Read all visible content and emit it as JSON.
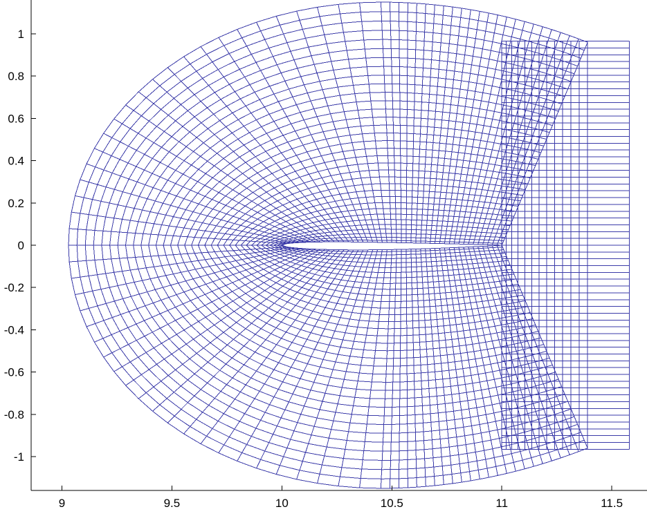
{
  "chart_data": {
    "type": "line",
    "title": "",
    "xlabel": "",
    "ylabel": "",
    "xlim": [
      8.86,
      11.66
    ],
    "ylim": [
      -1.16,
      1.16
    ],
    "grid": false,
    "legend": "none",
    "description_of_data": "structured O-type computational mesh around an airfoil (chord from x=10 to x=11) with rectangular wake block extending to x=11.58",
    "mesh": {
      "airfoil_leading_edge": [
        10.0,
        0.0
      ],
      "airfoil_trailing_edge": [
        11.0,
        0.0
      ],
      "airfoil_upper_max": [
        10.3,
        0.07
      ],
      "airfoil_lower_min": [
        10.35,
        -0.075
      ],
      "outer_boundary_points": [
        [
          9.03,
          0.0
        ],
        [
          9.2,
          0.55
        ],
        [
          9.44,
          0.8
        ],
        [
          9.6,
          0.92
        ],
        [
          9.9,
          1.05
        ],
        [
          10.2,
          1.12
        ],
        [
          10.55,
          1.15
        ],
        [
          10.8,
          1.12
        ],
        [
          11.1,
          1.05
        ],
        [
          11.39,
          0.96
        ],
        [
          11.39,
          -0.96
        ],
        [
          11.1,
          -1.05
        ],
        [
          10.8,
          -1.12
        ],
        [
          10.55,
          -1.15
        ],
        [
          10.2,
          -1.12
        ],
        [
          9.9,
          -1.05
        ],
        [
          9.6,
          -0.92
        ],
        [
          9.44,
          -0.8
        ],
        [
          9.2,
          -0.55
        ]
      ],
      "wake_block": {
        "x_start": 11.0,
        "x_end": 11.58,
        "y_top": 0.965,
        "y_bottom": -0.965
      }
    },
    "x_ticks": [
      "9",
      "9.5",
      "10",
      "10.5",
      "11",
      "11.5"
    ],
    "x_tick_values": [
      9,
      9.5,
      10,
      10.5,
      11,
      11.5
    ],
    "y_ticks": [
      "1",
      "0.8",
      "0.6",
      "0.4",
      "0.2",
      "0",
      "-0.2",
      "-0.4",
      "-0.6",
      "-0.8",
      "-1"
    ],
    "y_tick_values": [
      1,
      0.8,
      0.6,
      0.4,
      0.2,
      0,
      -0.2,
      -0.4,
      -0.6,
      -0.8,
      -1
    ],
    "series": [
      {
        "color": "#3a3aa8"
      }
    ],
    "colors": {
      "mesh": "#3a3aa8",
      "axis": "#000000",
      "background": "#ffffff"
    }
  }
}
